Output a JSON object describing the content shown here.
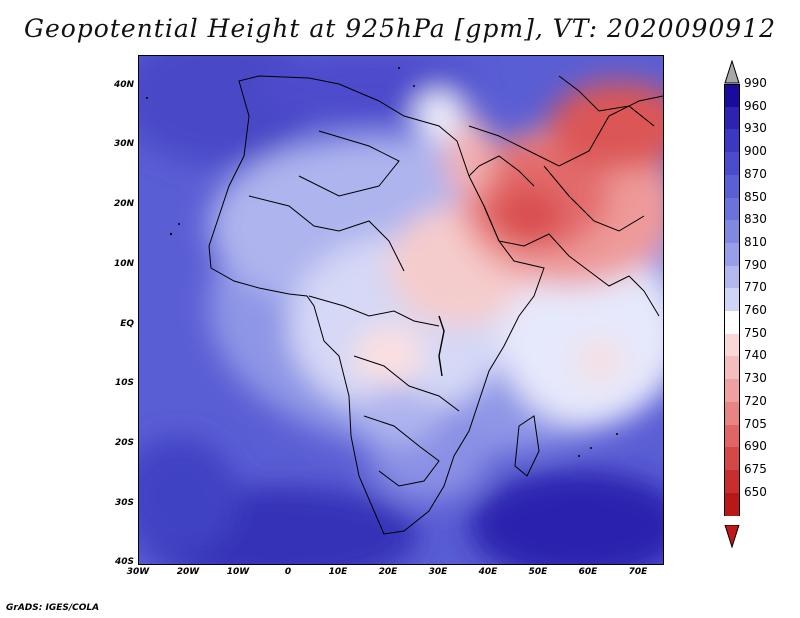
{
  "title": "Geopotential Height at 925hPa [gpm], VT: 2020090912",
  "footer": "GrADS: IGES/COLA",
  "axes": {
    "lon_labels": [
      "30W",
      "20W",
      "10W",
      "0",
      "10E",
      "20E",
      "30E",
      "40E",
      "50E",
      "60E",
      "70E"
    ],
    "lat_labels": [
      "40N",
      "30N",
      "20N",
      "10N",
      "EQ",
      "10S",
      "20S",
      "30S",
      "40S"
    ]
  },
  "colorbar": {
    "levels": [
      "990",
      "960",
      "930",
      "900",
      "870",
      "850",
      "830",
      "810",
      "790",
      "770",
      "760",
      "750",
      "740",
      "730",
      "720",
      "705",
      "690",
      "675",
      "650"
    ],
    "colors": [
      "#1a0a9e",
      "#2d23b0",
      "#3b38c2",
      "#4b4ccc",
      "#5a60d4",
      "#6c72dc",
      "#8088e2",
      "#979fe8",
      "#b3b9ef",
      "#d0d4f6",
      "#ffffff",
      "#fbd8d8",
      "#f5bdbd",
      "#efa1a1",
      "#e98484",
      "#e06565",
      "#d44848",
      "#c82e2e",
      "#b81818"
    ],
    "top_arrow_color": "#a8a8a8",
    "bottom_arrow_color": "#c01818"
  }
}
